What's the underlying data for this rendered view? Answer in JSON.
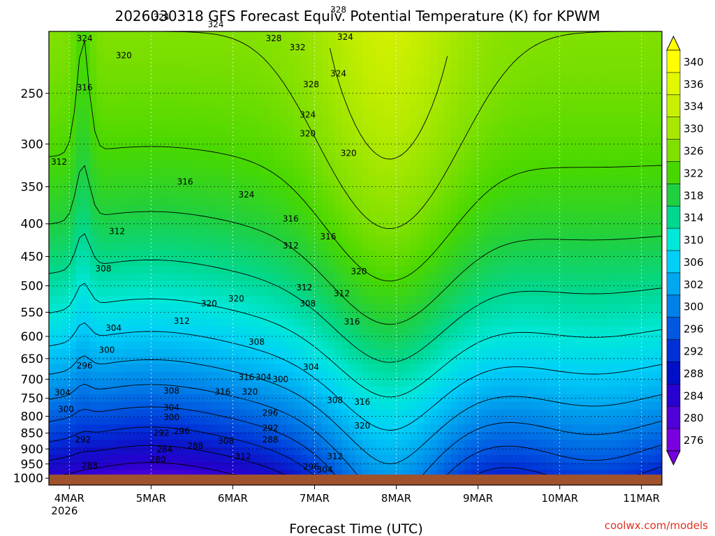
{
  "chart_data": {
    "type": "heatmap",
    "title": "2026030318 GFS Forecast Equiv. Potential Temperature (K) for KPWM",
    "xlabel": "Forecast Time (UTC)",
    "ylabel": "",
    "credit": "coolwx.com/models",
    "x_ticks": [
      {
        "label": "4MAR",
        "sub": "2026",
        "t": 6
      },
      {
        "label": "5MAR",
        "sub": "",
        "t": 30
      },
      {
        "label": "6MAR",
        "sub": "",
        "t": 54
      },
      {
        "label": "7MAR",
        "sub": "",
        "t": 78
      },
      {
        "label": "8MAR",
        "sub": "",
        "t": 102
      },
      {
        "label": "9MAR",
        "sub": "",
        "t": 126
      },
      {
        "label": "10MAR",
        "sub": "",
        "t": 150
      },
      {
        "label": "11MAR",
        "sub": "",
        "t": 174
      }
    ],
    "x_range_hours": [
      0,
      180
    ],
    "y_ticks": [
      "250",
      "300",
      "350",
      "400",
      "450",
      "500",
      "550",
      "600",
      "650",
      "700",
      "750",
      "800",
      "850",
      "900",
      "950",
      "1000"
    ],
    "y_values": [
      250,
      300,
      350,
      400,
      450,
      500,
      550,
      600,
      650,
      700,
      750,
      800,
      850,
      900,
      950,
      1000
    ],
    "y_range": [
      200,
      1025
    ],
    "y_scale": "log",
    "grid": true,
    "colorbar": {
      "labels": [
        "340",
        "336",
        "334",
        "330",
        "326",
        "322",
        "318",
        "314",
        "310",
        "306",
        "302",
        "300",
        "296",
        "292",
        "288",
        "284",
        "280",
        "276"
      ],
      "colors": [
        "#ffff00",
        "#e0f800",
        "#c8f000",
        "#a8e800",
        "#80e000",
        "#48d800",
        "#20d040",
        "#00d890",
        "#00e8d8",
        "#00d0f8",
        "#00a8f0",
        "#0080e8",
        "#0058e0",
        "#0030d8",
        "#0010c8",
        "#2800d0",
        "#5000d8",
        "#7800e0"
      ]
    },
    "contour_labels": [
      {
        "text": "324",
        "t": 10.5,
        "p": 205
      },
      {
        "text": "324",
        "t": 33,
        "p": 190
      },
      {
        "text": "324",
        "t": 49,
        "p": 195
      },
      {
        "text": "328",
        "t": 66,
        "p": 205
      },
      {
        "text": "332",
        "t": 73,
        "p": 212
      },
      {
        "text": "328",
        "t": 85,
        "p": 185
      },
      {
        "text": "324",
        "t": 87,
        "p": 204
      },
      {
        "text": "320",
        "t": 22,
        "p": 218
      },
      {
        "text": "316",
        "t": 10.5,
        "p": 245
      },
      {
        "text": "328",
        "t": 77,
        "p": 242
      },
      {
        "text": "324",
        "t": 76,
        "p": 270
      },
      {
        "text": "324",
        "t": 85,
        "p": 233
      },
      {
        "text": "320",
        "t": 76,
        "p": 289
      },
      {
        "text": "320",
        "t": 88,
        "p": 310
      },
      {
        "text": "312",
        "t": 3,
        "p": 320
      },
      {
        "text": "316",
        "t": 40,
        "p": 344
      },
      {
        "text": "324",
        "t": 58,
        "p": 360
      },
      {
        "text": "316",
        "t": 71,
        "p": 393
      },
      {
        "text": "312",
        "t": 20,
        "p": 411
      },
      {
        "text": "316",
        "t": 82,
        "p": 419
      },
      {
        "text": "312",
        "t": 71,
        "p": 433
      },
      {
        "text": "308",
        "t": 16,
        "p": 470
      },
      {
        "text": "320",
        "t": 91,
        "p": 475
      },
      {
        "text": "312",
        "t": 75,
        "p": 503
      },
      {
        "text": "312",
        "t": 86,
        "p": 514
      },
      {
        "text": "320",
        "t": 55,
        "p": 524
      },
      {
        "text": "320",
        "t": 47,
        "p": 533
      },
      {
        "text": "308",
        "t": 76,
        "p": 533
      },
      {
        "text": "312",
        "t": 39,
        "p": 568
      },
      {
        "text": "304",
        "t": 19,
        "p": 582
      },
      {
        "text": "316",
        "t": 89,
        "p": 569
      },
      {
        "text": "308",
        "t": 61,
        "p": 612
      },
      {
        "text": "300",
        "t": 17,
        "p": 630
      },
      {
        "text": "296",
        "t": 10.5,
        "p": 667
      },
      {
        "text": "304",
        "t": 77,
        "p": 670
      },
      {
        "text": "316",
        "t": 58,
        "p": 695
      },
      {
        "text": "304",
        "t": 63,
        "p": 695
      },
      {
        "text": "300",
        "t": 68,
        "p": 700
      },
      {
        "text": "304",
        "t": 4,
        "p": 735
      },
      {
        "text": "308",
        "t": 36,
        "p": 730
      },
      {
        "text": "316",
        "t": 51,
        "p": 733
      },
      {
        "text": "320",
        "t": 59,
        "p": 733
      },
      {
        "text": "308",
        "t": 84,
        "p": 755
      },
      {
        "text": "316",
        "t": 92,
        "p": 760
      },
      {
        "text": "300",
        "t": 5,
        "p": 780
      },
      {
        "text": "304",
        "t": 36,
        "p": 775
      },
      {
        "text": "296",
        "t": 65,
        "p": 790
      },
      {
        "text": "300",
        "t": 36,
        "p": 803
      },
      {
        "text": "292",
        "t": 65,
        "p": 835
      },
      {
        "text": "320",
        "t": 92,
        "p": 828
      },
      {
        "text": "296",
        "t": 39,
        "p": 845
      },
      {
        "text": "292",
        "t": 33,
        "p": 850
      },
      {
        "text": "292",
        "t": 10,
        "p": 870
      },
      {
        "text": "308",
        "t": 52,
        "p": 875
      },
      {
        "text": "288",
        "t": 65,
        "p": 870
      },
      {
        "text": "288",
        "t": 43,
        "p": 890
      },
      {
        "text": "284",
        "t": 34,
        "p": 902
      },
      {
        "text": "312",
        "t": 57,
        "p": 925
      },
      {
        "text": "312",
        "t": 84,
        "p": 925
      },
      {
        "text": "280",
        "t": 32,
        "p": 935
      },
      {
        "text": "288",
        "t": 12,
        "p": 955
      },
      {
        "text": "296",
        "t": 77,
        "p": 960
      },
      {
        "text": "304",
        "t": 81,
        "p": 970
      }
    ]
  }
}
